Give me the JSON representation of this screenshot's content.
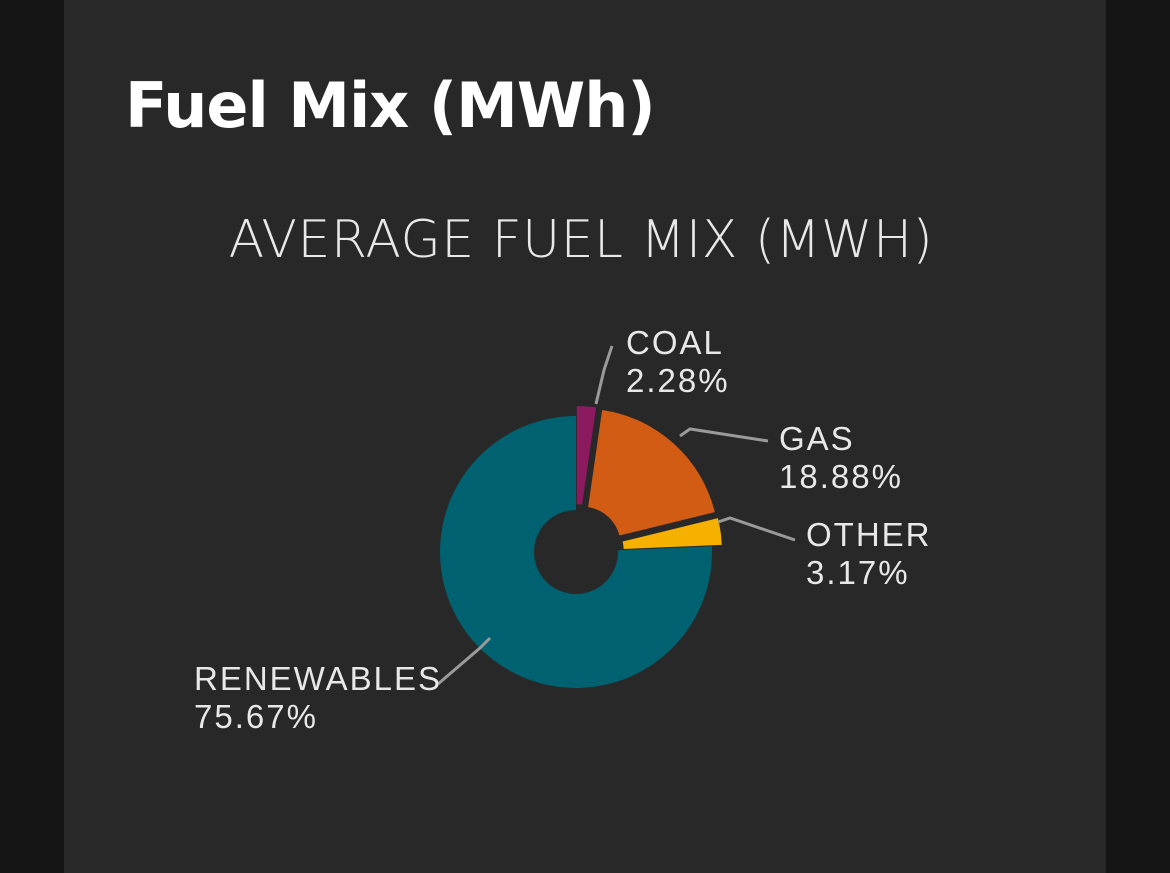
{
  "page": {
    "title": "Fuel Mix (MWh)"
  },
  "chart_data": {
    "type": "pie",
    "title": "AVERAGE FUEL MIX (MWH)",
    "slices": [
      {
        "name": "COAL",
        "percent_label": "2.28%",
        "value": 2.28,
        "color": "#8b1a5e"
      },
      {
        "name": "GAS",
        "percent_label": "18.88%",
        "value": 18.88,
        "color": "#d25c14"
      },
      {
        "name": "OTHER",
        "percent_label": "3.17%",
        "value": 3.17,
        "color": "#f5b000"
      },
      {
        "name": "RENEWABLES",
        "percent_label": "75.67%",
        "value": 75.67,
        "color": "#006170"
      }
    ],
    "colors": {
      "background": "#282828",
      "outer_background": "#151515",
      "text": "#e8e8e8",
      "leader_line": "#9a9a9a"
    }
  }
}
